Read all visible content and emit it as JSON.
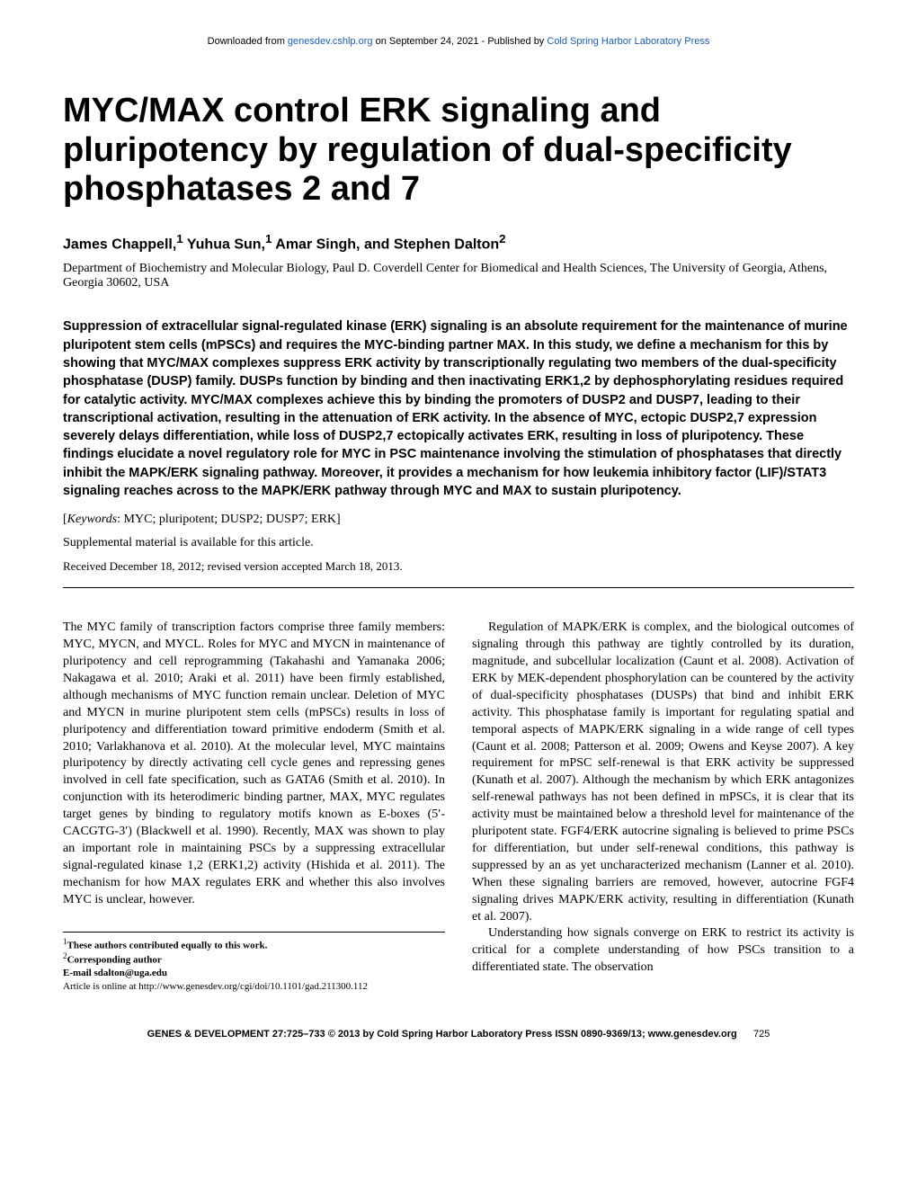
{
  "header": {
    "prefix": "Downloaded from ",
    "link1": "genesdev.cshlp.org",
    "middle": " on September 24, 2021 - Published by ",
    "link2": "Cold Spring Harbor Laboratory Press"
  },
  "title": "MYC/MAX control ERK signaling and pluripotency by regulation of dual-specificity phosphatases 2 and 7",
  "authors_html": "James Chappell,<sup>1</sup> Yuhua Sun,<sup>1</sup> Amar Singh, and Stephen Dalton<sup>2</sup>",
  "affiliation": "Department of Biochemistry and Molecular Biology, Paul D. Coverdell Center for Biomedical and Health Sciences, The University of Georgia, Athens, Georgia 30602, USA",
  "abstract": "Suppression of extracellular signal-regulated kinase (ERK) signaling is an absolute requirement for the maintenance of murine pluripotent stem cells (mPSCs) and requires the MYC-binding partner MAX. In this study, we define a mechanism for this by showing that MYC/MAX complexes suppress ERK activity by transcriptionally regulating two members of the dual-specificity phosphatase (DUSP) family. DUSPs function by binding and then inactivating ERK1,2 by dephosphorylating residues required for catalytic activity. MYC/MAX complexes achieve this by binding the promoters of DUSP2 and DUSP7, leading to their transcriptional activation, resulting in the attenuation of ERK activity. In the absence of MYC, ectopic DUSP2,7 expression severely delays differentiation, while loss of DUSP2,7 ectopically activates ERK, resulting in loss of pluripotency. These findings elucidate a novel regulatory role for MYC in PSC maintenance involving the stimulation of phosphatases that directly inhibit the MAPK/ERK signaling pathway. Moreover, it provides a mechanism for how leukemia inhibitory factor (LIF)/STAT3 signaling reaches across to the MAPK/ERK pathway through MYC and MAX to sustain pluripotency.",
  "keywords_label": "Keywords",
  "keywords": "MYC; pluripotent; DUSP2; DUSP7; ERK",
  "supplemental": "Supplemental material is available for this article.",
  "received": "Received December 18, 2012; revised version accepted March 18, 2013.",
  "body": {
    "col1": "The MYC family of transcription factors comprise three family members: MYC, MYCN, and MYCL. Roles for MYC and MYCN in maintenance of pluripotency and cell reprogramming (Takahashi and Yamanaka 2006; Nakagawa et al. 2010; Araki et al. 2011) have been firmly established, although mechanisms of MYC function remain unclear. Deletion of MYC and MYCN in murine pluripotent stem cells (mPSCs) results in loss of pluripotency and differentiation toward primitive endoderm (Smith et al. 2010; Varlakhanova et al. 2010). At the molecular level, MYC maintains pluripotency by directly activating cell cycle genes and repressing genes involved in cell fate specification, such as GATA6 (Smith et al. 2010). In conjunction with its heterodimeric binding partner, MAX, MYC regulates target genes by binding to regulatory motifs known as E-boxes (5′-CACGTG-3′) (Blackwell et al. 1990). Recently, MAX was shown to play an important role in maintaining PSCs by a suppressing extracellular signal-regulated kinase 1,2 (ERK1,2) activity (Hishida et al. 2011). The mechanism for how MAX regulates ERK and whether this also involves MYC is unclear, however.",
    "col2_p1": "Regulation of MAPK/ERK is complex, and the biological outcomes of signaling through this pathway are tightly controlled by its duration, magnitude, and subcellular localization (Caunt et al. 2008). Activation of ERK by MEK-dependent phosphorylation can be countered by the activity of dual-specificity phosphatases (DUSPs) that bind and inhibit ERK activity. This phosphatase family is important for regulating spatial and temporal aspects of MAPK/ERK signaling in a wide range of cell types (Caunt et al. 2008; Patterson et al. 2009; Owens and Keyse 2007). A key requirement for mPSC self-renewal is that ERK activity be suppressed (Kunath et al. 2007). Although the mechanism by which ERK antagonizes self-renewal pathways has not been defined in mPSCs, it is clear that its activity must be maintained below a threshold level for maintenance of the pluripotent state. FGF4/ERK autocrine signaling is believed to prime PSCs for differentiation, but under self-renewal conditions, this pathway is suppressed by an as yet uncharacterized mechanism (Lanner et al. 2010). When these signaling barriers are removed, however, autocrine FGF4 signaling drives MAPK/ERK activity, resulting in differentiation (Kunath et al. 2007).",
    "col2_p2": "Understanding how signals converge on ERK to restrict its activity is critical for a complete understanding of how PSCs transition to a differentiated state. The observation"
  },
  "footnotes": {
    "f1": "These authors contributed equally to this work.",
    "f2": "Corresponding author",
    "email": "E-mail sdalton@uga.edu",
    "article": "Article is online at http://www.genesdev.org/cgi/doi/10.1101/gad.211300.112"
  },
  "footer": {
    "left": "GENES & DEVELOPMENT 27:725–733 © 2013 by Cold Spring Harbor Laboratory Press ISSN 0890-9369/13; www.genesdev.org",
    "page": "725"
  }
}
